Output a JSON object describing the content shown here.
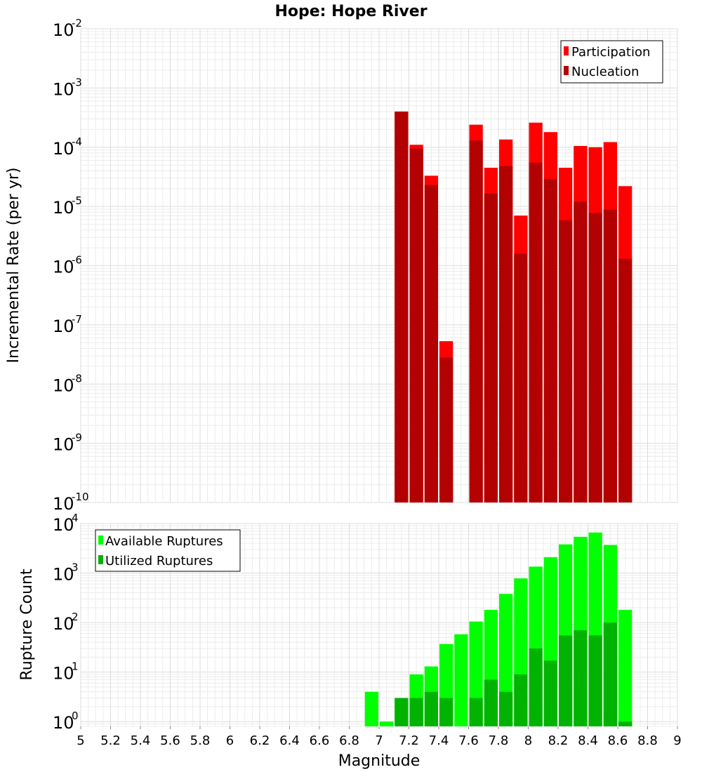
{
  "chart_data": [
    {
      "type": "bar",
      "title": "Hope: Hope River",
      "xlabel": "",
      "ylabel": "Incremental Rate (per yr)",
      "yscale": "log",
      "ylim": [
        1e-10,
        0.01
      ],
      "xlim": [
        5,
        9
      ],
      "ytick_base": "10",
      "ytick_exponents": [
        "-10",
        "-9",
        "-8",
        "-7",
        "-6",
        "-5",
        "-4",
        "-3",
        "-2"
      ],
      "grid": true,
      "legend_position": "top-right",
      "bin_width": 0.1,
      "series": [
        {
          "name": "Participation",
          "color": "#ff0000",
          "x": [
            7.15,
            7.25,
            7.35,
            7.45,
            7.65,
            7.75,
            7.85,
            7.95,
            8.05,
            8.15,
            8.25,
            8.35,
            8.45,
            8.55,
            8.65
          ],
          "values": [
            0.0004,
            0.00011,
            3.3e-05,
            5.3e-08,
            0.00024,
            4.5e-05,
            0.000135,
            7e-06,
            0.00026,
            0.00018,
            4.5e-05,
            0.000105,
            0.0001,
            0.000122,
            2.2e-05
          ]
        },
        {
          "name": "Nucleation",
          "color": "#b30000",
          "x": [
            7.15,
            7.25,
            7.35,
            7.45,
            7.65,
            7.75,
            7.85,
            7.95,
            8.05,
            8.15,
            8.25,
            8.35,
            8.45,
            8.55,
            8.65
          ],
          "values": [
            0.0004,
            9.5e-05,
            2.3e-05,
            2.8e-08,
            0.00013,
            1.65e-05,
            4.8e-05,
            1.6e-06,
            5.5e-05,
            2.9e-05,
            5.8e-06,
            1.2e-05,
            7.8e-06,
            8.8e-06,
            1.3e-06
          ]
        }
      ]
    },
    {
      "type": "bar",
      "title": "",
      "xlabel": "Magnitude",
      "ylabel": "Rupture Count",
      "yscale": "log",
      "ylim": [
        0.8,
        10000.0
      ],
      "xlim": [
        5,
        9
      ],
      "x_ticks": [
        "5",
        "5.2",
        "5.4",
        "5.6",
        "5.8",
        "6",
        "6.2",
        "6.4",
        "6.6",
        "6.8",
        "7",
        "7.2",
        "7.4",
        "7.6",
        "7.8",
        "8",
        "8.2",
        "8.4",
        "8.6",
        "8.8",
        "9"
      ],
      "ytick_base": "10",
      "ytick_exponents": [
        "0",
        "1",
        "2",
        "3",
        "4"
      ],
      "grid": true,
      "legend_position": "top-left",
      "bin_width": 0.1,
      "series": [
        {
          "name": "Available Ruptures",
          "color": "#00ff00",
          "x": [
            6.95,
            7.05,
            7.15,
            7.25,
            7.35,
            7.45,
            7.55,
            7.65,
            7.75,
            7.85,
            7.95,
            8.05,
            8.15,
            8.25,
            8.35,
            8.45,
            8.55,
            8.65
          ],
          "values": [
            4,
            1,
            3,
            9,
            13,
            37,
            58,
            105,
            180,
            380,
            780,
            1350,
            2100,
            3800,
            5400,
            6600,
            3700,
            180
          ]
        },
        {
          "name": "Utilized Ruptures",
          "color": "#00b300",
          "x": [
            7.15,
            7.25,
            7.35,
            7.45,
            7.65,
            7.75,
            7.85,
            7.95,
            8.05,
            8.15,
            8.25,
            8.35,
            8.45,
            8.55,
            8.65
          ],
          "values": [
            3,
            3,
            4,
            3,
            3,
            7,
            4,
            9,
            30,
            17,
            55,
            70,
            55,
            100,
            1
          ]
        }
      ]
    }
  ]
}
